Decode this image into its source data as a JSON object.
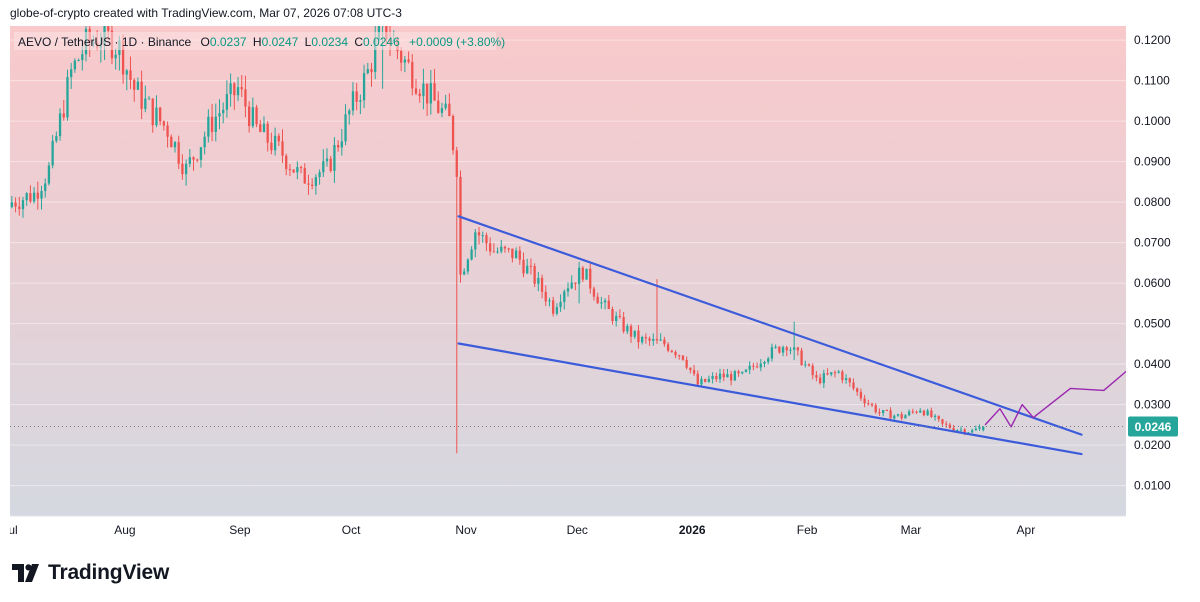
{
  "header": {
    "attribution": "globe-of-crypto created with TradingView.com, Mar 07, 2026 07:08 UTC-3"
  },
  "legend": {
    "symbol": "AEVO / TetherUS · 1D · Binance",
    "o_label": "O",
    "o_value": "0.0237",
    "h_label": "H",
    "h_value": "0.0247",
    "l_label": "L",
    "l_value": "0.0234",
    "c_label": "C",
    "c_value": "0.0246",
    "change": "+0.0009 (+3.80%)"
  },
  "footer": {
    "brand": "TradingView"
  },
  "colors": {
    "up": "#26a69a",
    "down": "#ef5350",
    "trendline": "#3b5bdb",
    "projection": "#9c27b0",
    "price_tag": "#26a69a",
    "bg_top": "#f9c9cb",
    "bg_bottom": "#d5d8e0"
  },
  "icons": {
    "logo": "tradingview-logo-icon"
  },
  "chart_data": {
    "type": "candlestick",
    "title": "AEVO / TetherUS · 1D · Binance",
    "xlabel": "",
    "ylabel": "",
    "y_scale": "linear",
    "y_axis_position": "right",
    "grid": "horizontal",
    "ylim": [
      0.0025,
      0.1235
    ],
    "yticks": [
      "0.1200",
      "0.1100",
      "0.1000",
      "0.0900",
      "0.0800",
      "0.0700",
      "0.0600",
      "0.0500",
      "0.0400",
      "0.0300",
      "0.0200",
      "0.0100"
    ],
    "x_start": "2025-07-01",
    "x_end": "2026-04-28",
    "xticks": [
      {
        "label": "Jul",
        "date": "2025-07-01"
      },
      {
        "label": "Aug",
        "date": "2025-08-01"
      },
      {
        "label": "Sep",
        "date": "2025-09-01"
      },
      {
        "label": "Oct",
        "date": "2025-10-01"
      },
      {
        "label": "Nov",
        "date": "2025-11-01"
      },
      {
        "label": "Dec",
        "date": "2025-12-01"
      },
      {
        "label": "2026",
        "date": "2026-01-01",
        "bold": true
      },
      {
        "label": "Feb",
        "date": "2026-02-01"
      },
      {
        "label": "Mar",
        "date": "2026-03-01"
      },
      {
        "label": "Apr",
        "date": "2026-04-01"
      }
    ],
    "current_price": {
      "value": 0.0246,
      "label": "0.0246"
    },
    "close_anchors": [
      [
        "2025-07-01",
        0.08
      ],
      [
        "2025-07-07",
        0.082
      ],
      [
        "2025-07-11",
        0.088
      ],
      [
        "2025-07-14",
        0.1
      ],
      [
        "2025-07-17",
        0.112
      ],
      [
        "2025-07-21",
        0.119
      ],
      [
        "2025-07-26",
        0.121
      ],
      [
        "2025-07-30",
        0.118
      ],
      [
        "2025-08-03",
        0.108
      ],
      [
        "2025-08-08",
        0.102
      ],
      [
        "2025-08-12",
        0.098
      ],
      [
        "2025-08-17",
        0.088
      ],
      [
        "2025-08-24",
        0.1
      ],
      [
        "2025-08-31",
        0.108
      ],
      [
        "2025-09-05",
        0.098
      ],
      [
        "2025-09-12",
        0.092
      ],
      [
        "2025-09-17",
        0.086
      ],
      [
        "2025-09-24",
        0.088
      ],
      [
        "2025-09-30",
        0.102
      ],
      [
        "2025-10-05",
        0.112
      ],
      [
        "2025-10-09",
        0.124
      ],
      [
        "2025-10-14",
        0.116
      ],
      [
        "2025-10-20",
        0.108
      ],
      [
        "2025-10-27",
        0.1
      ],
      [
        "2025-10-29",
        0.089
      ],
      [
        "2025-10-30",
        0.062
      ],
      [
        "2025-11-03",
        0.073
      ],
      [
        "2025-11-08",
        0.068
      ],
      [
        "2025-11-14",
        0.067
      ],
      [
        "2025-11-19",
        0.061
      ],
      [
        "2025-11-24",
        0.054
      ],
      [
        "2025-11-27",
        0.059
      ],
      [
        "2025-12-02",
        0.063
      ],
      [
        "2025-12-07",
        0.055
      ],
      [
        "2025-12-12",
        0.05
      ],
      [
        "2025-12-17",
        0.046
      ],
      [
        "2025-12-24",
        0.045
      ],
      [
        "2025-12-29",
        0.042
      ],
      [
        "2026-01-02",
        0.035
      ],
      [
        "2026-01-08",
        0.037
      ],
      [
        "2026-01-14",
        0.037
      ],
      [
        "2026-01-20",
        0.042
      ],
      [
        "2026-01-26",
        0.045
      ],
      [
        "2026-01-30",
        0.041
      ],
      [
        "2026-02-03",
        0.036
      ],
      [
        "2026-02-09",
        0.038
      ],
      [
        "2026-02-15",
        0.032
      ],
      [
        "2026-02-20",
        0.028
      ],
      [
        "2026-02-26",
        0.027
      ],
      [
        "2026-03-03",
        0.029
      ],
      [
        "2026-03-09",
        0.025
      ],
      [
        "2026-03-13",
        0.024
      ],
      [
        "2026-03-17",
        0.0234
      ],
      [
        "2026-03-20",
        0.0246
      ]
    ],
    "notable_wicks": [
      {
        "date": "2025-10-29",
        "high": 0.089,
        "low": 0.018
      },
      {
        "date": "2025-10-09",
        "high": 0.127,
        "low": 0.108
      },
      {
        "date": "2025-12-01",
        "high": 0.064,
        "low": 0.055
      },
      {
        "date": "2025-12-22",
        "high": 0.061,
        "low": 0.045
      },
      {
        "date": "2026-01-28",
        "high": 0.0505,
        "low": 0.041
      }
    ],
    "trendlines": [
      {
        "name": "upper",
        "points": [
          [
            "2025-10-30",
            0.0765
          ],
          [
            "2026-04-16",
            0.0226
          ]
        ]
      },
      {
        "name": "lower",
        "points": [
          [
            "2025-10-30",
            0.0451
          ],
          [
            "2026-04-16",
            0.0178
          ]
        ]
      }
    ],
    "projection": {
      "points": [
        [
          "2026-03-21",
          0.025
        ],
        [
          "2026-03-25",
          0.029
        ],
        [
          "2026-03-28",
          0.0245
        ],
        [
          "2026-03-31",
          0.03
        ],
        [
          "2026-04-03",
          0.0268
        ],
        [
          "2026-04-13",
          0.034
        ],
        [
          "2026-04-22",
          0.0335
        ],
        [
          "2026-05-07",
          0.0452
        ]
      ]
    }
  }
}
